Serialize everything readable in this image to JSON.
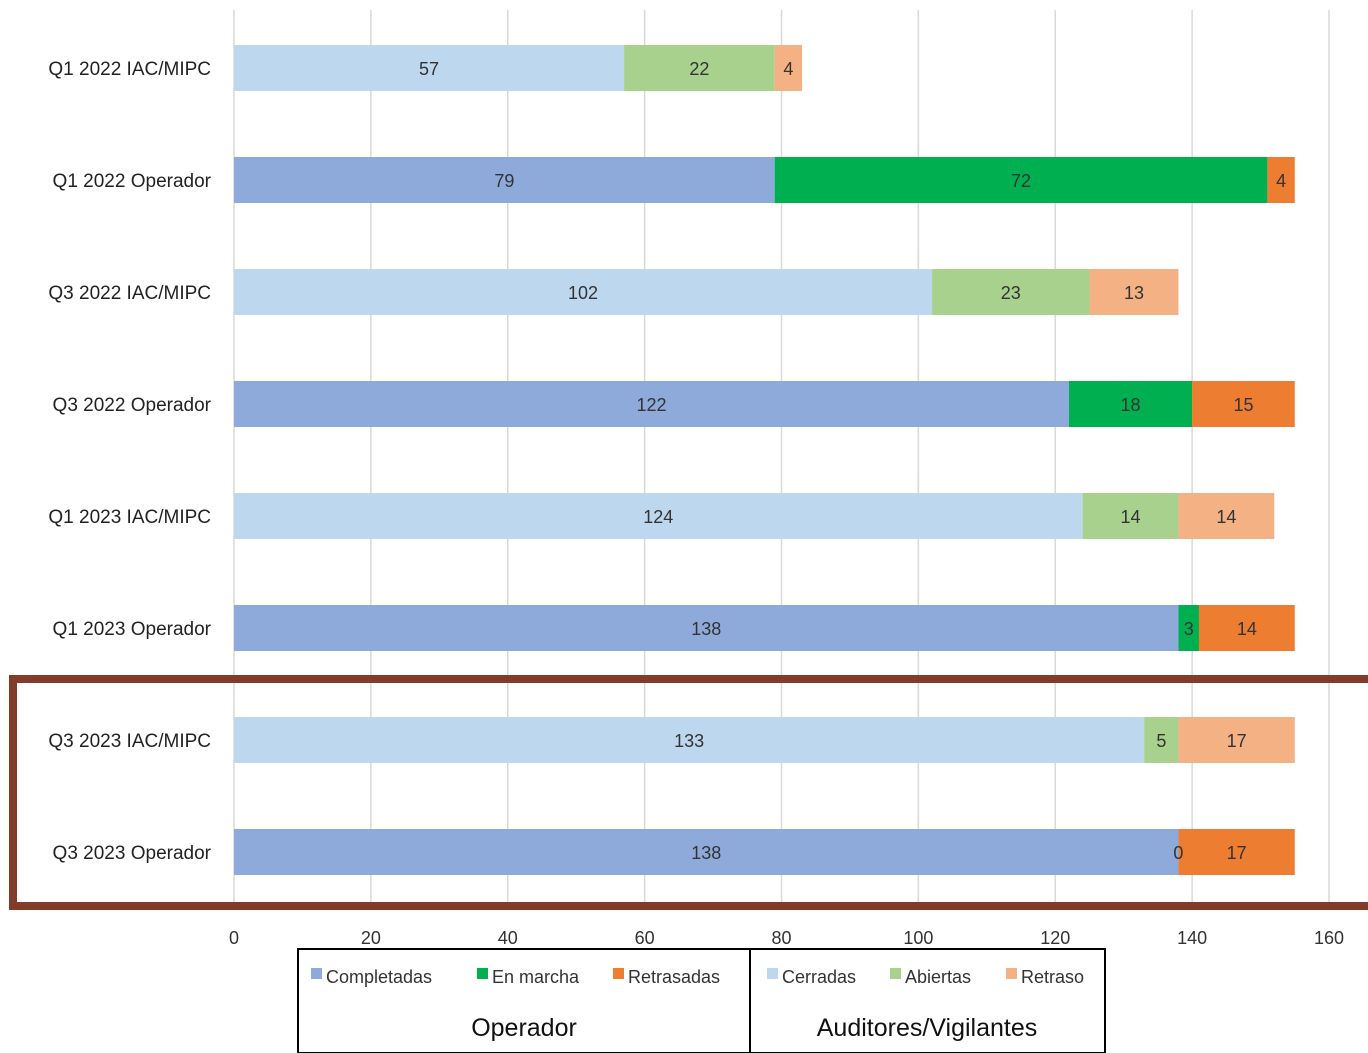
{
  "chart_data": {
    "type": "bar",
    "orientation": "horizontal",
    "stacked": true,
    "categories": [
      "Q1 2022 IAC/MIPC",
      "Q1 2022 Operador",
      "Q3 2022 IAC/MIPC",
      "Q3 2022 Operador",
      "Q1 2023 IAC/MIPC",
      "Q1 2023 Operador",
      "Q3 2023 IAC/MIPC",
      "Q3 2023 Operador"
    ],
    "series": [
      {
        "name": "Completadas",
        "color": "#8eaadb",
        "values": [
          null,
          79,
          null,
          122,
          null,
          138,
          null,
          138
        ]
      },
      {
        "name": "En marcha",
        "color": "#00b050",
        "values": [
          null,
          72,
          null,
          18,
          null,
          3,
          null,
          0
        ]
      },
      {
        "name": "Retrasadas",
        "color": "#ed7d31",
        "values": [
          null,
          4,
          null,
          15,
          null,
          14,
          null,
          17
        ]
      },
      {
        "name": "Cerradas",
        "color": "#bdd7ee",
        "values": [
          57,
          null,
          102,
          null,
          124,
          null,
          133,
          null
        ]
      },
      {
        "name": "Abiertas",
        "color": "#a9d18e",
        "values": [
          22,
          null,
          23,
          null,
          14,
          null,
          5,
          null
        ]
      },
      {
        "name": "Retraso",
        "color": "#f4b183",
        "values": [
          4,
          null,
          13,
          null,
          14,
          null,
          17,
          null
        ]
      }
    ],
    "xlim": [
      0,
      160
    ],
    "xticks": [
      "0",
      "20",
      "40",
      "60",
      "80",
      "100",
      "120",
      "140",
      "160"
    ],
    "grid": true,
    "legend_position": "bottom",
    "legend_groups": [
      {
        "label": "Operador",
        "series": [
          "Completadas",
          "En marcha",
          "Retrasadas"
        ]
      },
      {
        "label": "Auditores/Vigilantes",
        "series": [
          "Cerradas",
          "Abiertas",
          "Retraso"
        ]
      }
    ],
    "highlight": {
      "categories": [
        "Q3 2023 IAC/MIPC",
        "Q3 2023 Operador"
      ],
      "color": "#843c2a"
    }
  }
}
